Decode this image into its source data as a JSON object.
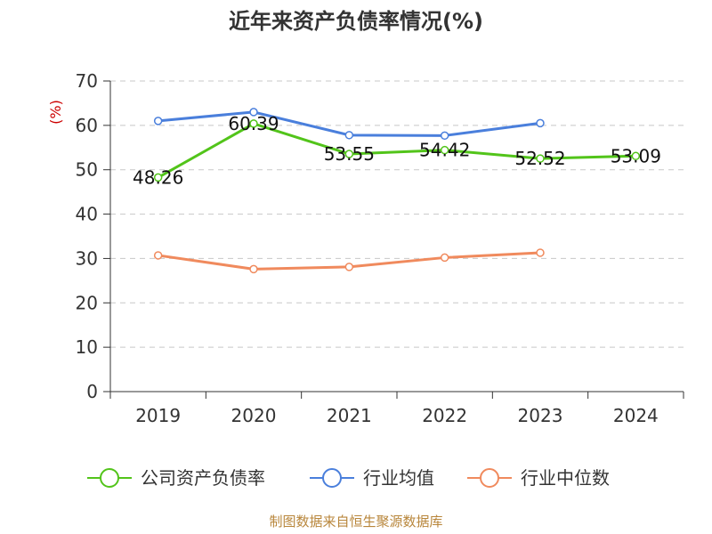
{
  "chart_data": {
    "type": "line",
    "title": "近年来资产负债率情况(%)",
    "ylabel": "(%)",
    "categories": [
      "2019",
      "2020",
      "2021",
      "2022",
      "2023",
      "2024"
    ],
    "ylim": [
      0,
      70
    ],
    "yticks": [
      0,
      10,
      20,
      30,
      40,
      50,
      60,
      70
    ],
    "grid": true,
    "legend_position": "bottom",
    "series": [
      {
        "name": "公司资产负债率",
        "color": "#52c41a",
        "values": [
          48.26,
          60.39,
          53.55,
          54.42,
          52.52,
          53.09
        ],
        "labels": [
          "48.26",
          "60.39",
          "53.55",
          "54.42",
          "52.52",
          "53.09"
        ]
      },
      {
        "name": "行业均值",
        "color": "#4a7fdc",
        "values": [
          61.0,
          63.0,
          57.8,
          57.7,
          60.5,
          null
        ]
      },
      {
        "name": "行业中位数",
        "color": "#f08a5d",
        "values": [
          30.7,
          27.6,
          28.1,
          30.2,
          31.3,
          null
        ]
      }
    ],
    "source": "制图数据来自恒生聚源数据库"
  }
}
